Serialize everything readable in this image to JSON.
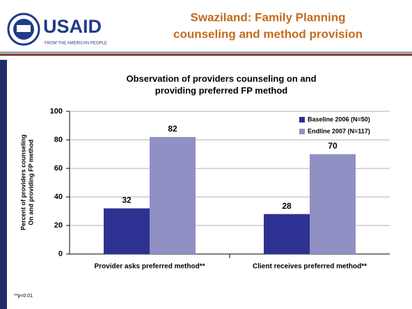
{
  "header": {
    "logo_text": "USAID",
    "logo_tagline": "FROM THE AMERICAN PEOPLE",
    "title": [
      "Swaziland: Family Planning",
      "counseling and method provision"
    ]
  },
  "chart_data": {
    "type": "bar",
    "title": [
      "Observation of providers counseling on and",
      "providing preferred FP method"
    ],
    "y_label": [
      "Percent of providers counseling",
      "On and providing FP method"
    ],
    "categories": [
      "Provider asks preferred method**",
      "Client receives preferred method**"
    ],
    "series": [
      {
        "name": "Baseline 2006 (N=50)",
        "color": "#2e3192",
        "values": [
          32,
          28
        ]
      },
      {
        "name": "Endline 2007 (N=117)",
        "color": "#9090c4",
        "values": [
          82,
          70
        ]
      }
    ],
    "ylim": [
      0,
      100
    ],
    "yticks": [
      0,
      20,
      40,
      60,
      80,
      100
    ],
    "grid": true,
    "legend": "top-right",
    "footnote": "**p<0.01"
  }
}
